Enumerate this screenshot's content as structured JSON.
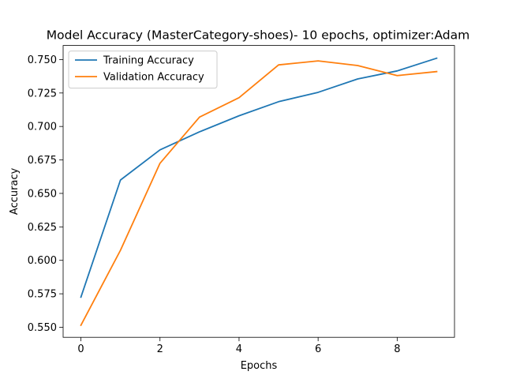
{
  "chart_data": {
    "type": "line",
    "title": "Model Accuracy (MasterCategory-shoes)- 10 epochs, optimizer:Adam",
    "xlabel": "Epochs",
    "ylabel": "Accuracy",
    "xlim": [
      -0.45,
      9.45
    ],
    "ylim": [
      0.5425,
      0.7605
    ],
    "xticks": [
      0,
      2,
      4,
      6,
      8
    ],
    "yticks": [
      0.55,
      0.575,
      0.6,
      0.625,
      0.65,
      0.675,
      0.7,
      0.725,
      0.75
    ],
    "grid": false,
    "legend_position": "upper-left",
    "x": [
      0,
      1,
      2,
      3,
      4,
      5,
      6,
      7,
      8,
      9
    ],
    "series": [
      {
        "name": "Training Accuracy",
        "color": "#1f77b4",
        "values": [
          0.5725,
          0.66,
          0.6825,
          0.696,
          0.708,
          0.7185,
          0.7255,
          0.7355,
          0.7415,
          0.751
        ]
      },
      {
        "name": "Validation Accuracy",
        "color": "#ff7f0e",
        "values": [
          0.5515,
          0.6075,
          0.6725,
          0.707,
          0.7215,
          0.746,
          0.749,
          0.7455,
          0.738,
          0.741
        ]
      }
    ]
  }
}
